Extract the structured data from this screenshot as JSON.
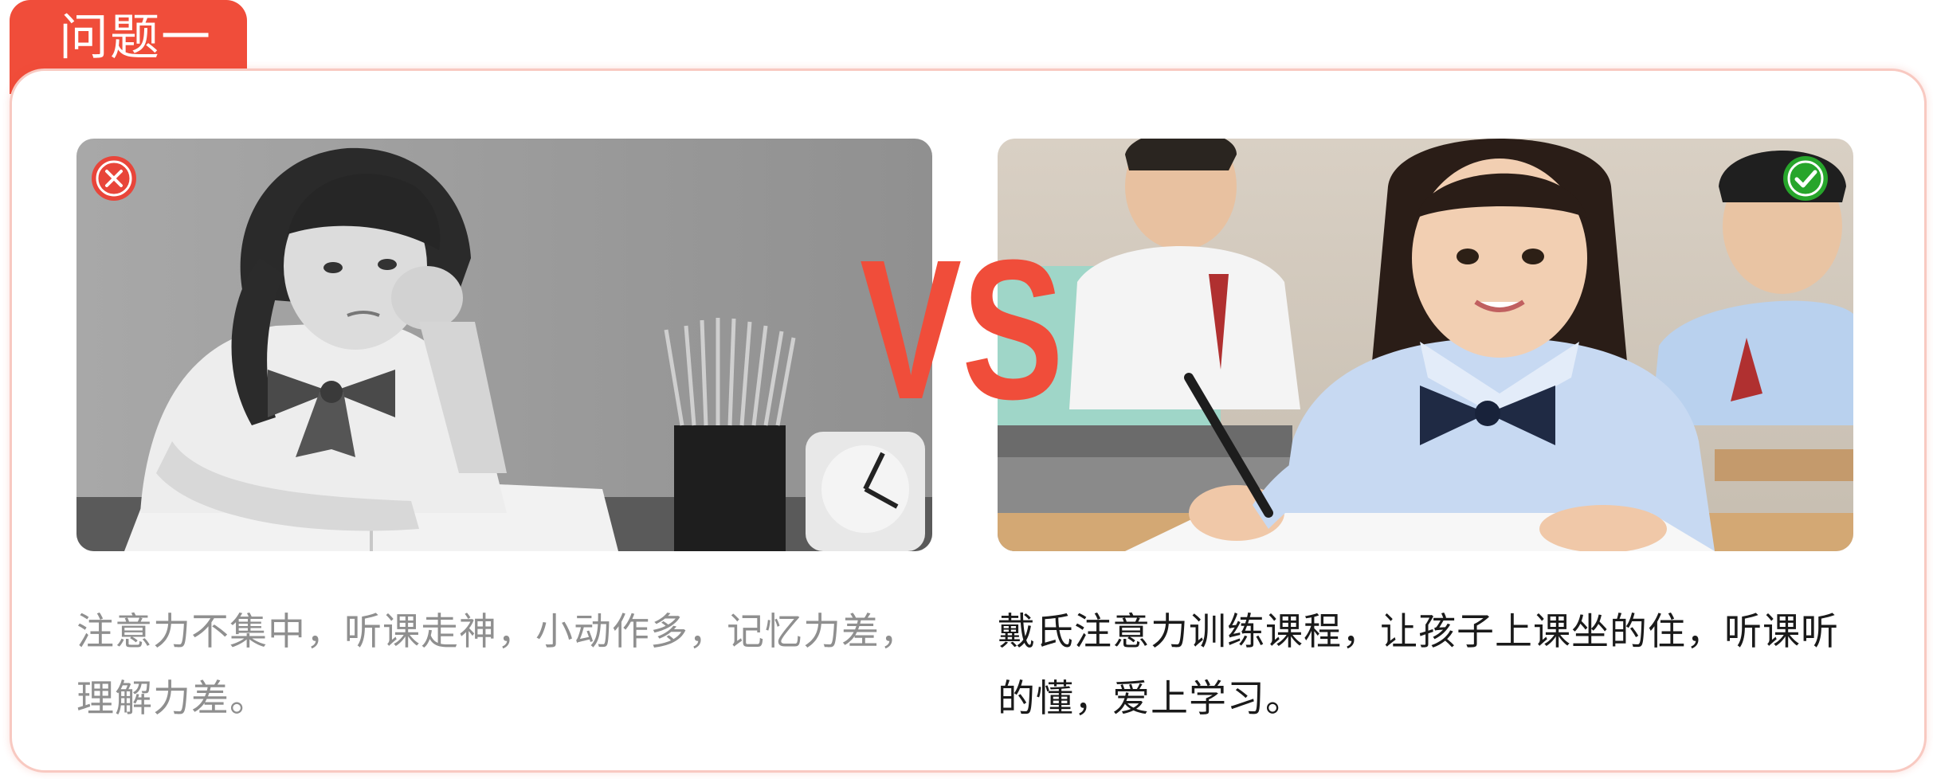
{
  "tab": {
    "label": "问题一"
  },
  "comparison": {
    "vs_label": "VS",
    "left": {
      "status_icon": "cross-icon",
      "image": "girl-bored-at-desk-grayscale",
      "caption": "注意力不集中，听课走神，小动作多，记忆力差，理解力差。"
    },
    "right": {
      "status_icon": "check-icon",
      "image": "girl-writing-in-classroom",
      "caption": "戴氏注意力训练课程，让孩子上课坐的住，听课听的懂，爱上学习。"
    }
  },
  "colors": {
    "accent": "#f04d3a",
    "border": "#f8c9c1",
    "success": "#27a52b",
    "muted_text": "#8f8f8f",
    "dark_text": "#1a1a1a"
  }
}
